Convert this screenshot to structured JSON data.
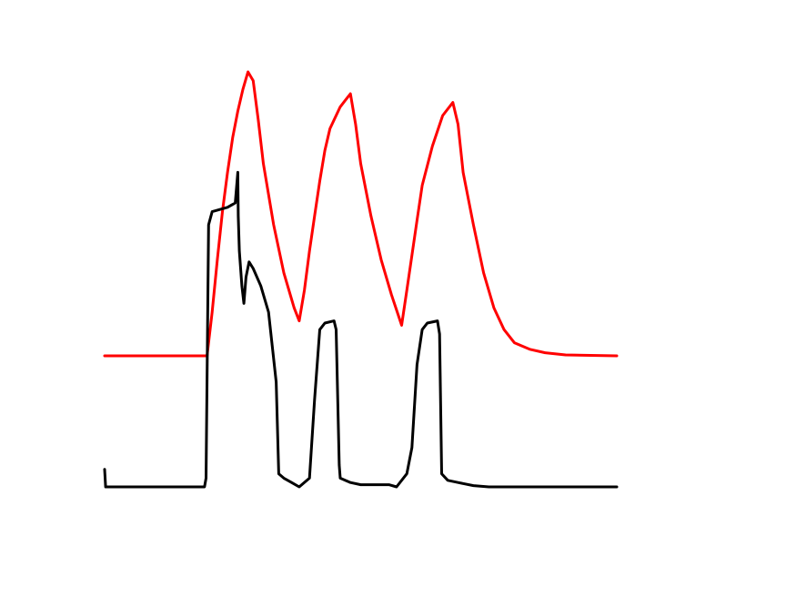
{
  "chart_data": {
    "type": "line",
    "title": "",
    "xlabel": "",
    "ylabel": "",
    "grid": false,
    "axes_visible": false,
    "legend": "none",
    "xlim": [
      0,
      100
    ],
    "ylim": [
      0,
      100
    ],
    "series": [
      {
        "color": "#ff0000",
        "points": [
          [
            0,
            30
          ],
          [
            20,
            30
          ],
          [
            21,
            40
          ],
          [
            22,
            52
          ],
          [
            23,
            63
          ],
          [
            24,
            72
          ],
          [
            25,
            80
          ],
          [
            26,
            86
          ],
          [
            27,
            91
          ],
          [
            28,
            95
          ],
          [
            29,
            93
          ],
          [
            30,
            84
          ],
          [
            31,
            74
          ],
          [
            33,
            60
          ],
          [
            35,
            49
          ],
          [
            37,
            41
          ],
          [
            38,
            38
          ],
          [
            39,
            45
          ],
          [
            40,
            54
          ],
          [
            41,
            62
          ],
          [
            42,
            70
          ],
          [
            43,
            77
          ],
          [
            44,
            82
          ],
          [
            46,
            87
          ],
          [
            48,
            90
          ],
          [
            49,
            83
          ],
          [
            50,
            74
          ],
          [
            52,
            62
          ],
          [
            54,
            52
          ],
          [
            56,
            44
          ],
          [
            58,
            37
          ],
          [
            59,
            45
          ],
          [
            60,
            53
          ],
          [
            61,
            61
          ],
          [
            62,
            69
          ],
          [
            64,
            78
          ],
          [
            66,
            85
          ],
          [
            68,
            88
          ],
          [
            69,
            83
          ],
          [
            70,
            72
          ],
          [
            72,
            60
          ],
          [
            74,
            49
          ],
          [
            76,
            41
          ],
          [
            78,
            36
          ],
          [
            80,
            33
          ],
          [
            83,
            31.5
          ],
          [
            86,
            30.7
          ],
          [
            90,
            30.2
          ],
          [
            100,
            30
          ]
        ]
      },
      {
        "color": "#000000",
        "points": [
          [
            0,
            4
          ],
          [
            0.2,
            0
          ],
          [
            19.5,
            0
          ],
          [
            19.8,
            2
          ],
          [
            20.3,
            60
          ],
          [
            21,
            63
          ],
          [
            24,
            64
          ],
          [
            25.5,
            65
          ],
          [
            26,
            72
          ],
          [
            26.1,
            62
          ],
          [
            26.3,
            54
          ],
          [
            26.8,
            46
          ],
          [
            27.2,
            42
          ],
          [
            27.6,
            48
          ],
          [
            28.2,
            51.5
          ],
          [
            29,
            50
          ],
          [
            30.5,
            46
          ],
          [
            32,
            40
          ],
          [
            33.5,
            24
          ],
          [
            34,
            3
          ],
          [
            35,
            2
          ],
          [
            36.5,
            1
          ],
          [
            38,
            0
          ],
          [
            40,
            2
          ],
          [
            41,
            20
          ],
          [
            42,
            36
          ],
          [
            43,
            37.5
          ],
          [
            44.8,
            38
          ],
          [
            45.2,
            36
          ],
          [
            45.8,
            5
          ],
          [
            46,
            2
          ],
          [
            48,
            1
          ],
          [
            50,
            0.5
          ],
          [
            55.5,
            0.5
          ],
          [
            57,
            0
          ],
          [
            59,
            3
          ],
          [
            60,
            9
          ],
          [
            61,
            28
          ],
          [
            62,
            36
          ],
          [
            63,
            37.5
          ],
          [
            65,
            38
          ],
          [
            65.4,
            35
          ],
          [
            65.8,
            3
          ],
          [
            67,
            1.5
          ],
          [
            69,
            1
          ],
          [
            72,
            0.3
          ],
          [
            75,
            0
          ],
          [
            100,
            0
          ]
        ]
      }
    ]
  }
}
